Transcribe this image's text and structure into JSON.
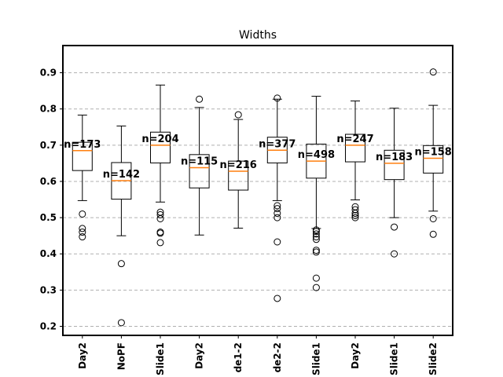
{
  "chart_data": {
    "type": "boxplot",
    "title": "Widths",
    "xlabel": "",
    "ylabel": "",
    "ylim": [
      0.175,
      0.975
    ],
    "yticks": [
      0.2,
      0.3,
      0.4,
      0.5,
      0.6,
      0.7,
      0.8,
      0.9
    ],
    "ytick_labels": [
      "0.2",
      "0.3",
      "0.4",
      "0.5",
      "0.6",
      "0.7",
      "0.8",
      "0.9"
    ],
    "grid": "y-dashed",
    "categories": [
      "Day2",
      "NoPF",
      "Slide1",
      "Day2",
      "de1-2",
      "de2-2",
      "Slide1",
      "Day2",
      "Slide1",
      "Slide2"
    ],
    "boxes": [
      {
        "label": "Day2",
        "whislo": 0.547,
        "q1": 0.63,
        "med": 0.685,
        "q3": 0.708,
        "whishi": 0.783,
        "fliers": [
          0.51,
          0.47,
          0.46,
          0.447
        ],
        "n_label": "n=173"
      },
      {
        "label": "NoPF",
        "whislo": 0.45,
        "q1": 0.551,
        "med": 0.602,
        "q3": 0.652,
        "whishi": 0.753,
        "fliers": [
          0.373,
          0.21
        ],
        "n_label": "n=142"
      },
      {
        "label": "Slide1",
        "whislo": 0.543,
        "q1": 0.651,
        "med": 0.7,
        "q3": 0.736,
        "whishi": 0.866,
        "fliers": [
          0.515,
          0.508,
          0.497,
          0.46,
          0.457,
          0.431
        ],
        "n_label": "n=204"
      },
      {
        "label": "Day2",
        "whislo": 0.452,
        "q1": 0.582,
        "med": 0.638,
        "q3": 0.674,
        "whishi": 0.804,
        "fliers": [
          0.827
        ],
        "n_label": "n=115"
      },
      {
        "label": "de1-2",
        "whislo": 0.471,
        "q1": 0.576,
        "med": 0.628,
        "q3": 0.656,
        "whishi": 0.771,
        "fliers": [
          0.784
        ],
        "n_label": "n=216"
      },
      {
        "label": "de2-2",
        "whislo": 0.547,
        "q1": 0.651,
        "med": 0.686,
        "q3": 0.722,
        "whishi": 0.827,
        "fliers": [
          0.83,
          0.533,
          0.525,
          0.512,
          0.5,
          0.433,
          0.277
        ],
        "n_label": "n=377"
      },
      {
        "label": "Slide1",
        "whislo": 0.47,
        "q1": 0.609,
        "med": 0.656,
        "q3": 0.703,
        "whishi": 0.835,
        "fliers": [
          0.466,
          0.462,
          0.455,
          0.447,
          0.44,
          0.41,
          0.405,
          0.333,
          0.307
        ],
        "n_label": "n=498"
      },
      {
        "label": "Day2",
        "whislo": 0.549,
        "q1": 0.654,
        "med": 0.7,
        "q3": 0.73,
        "whishi": 0.822,
        "fliers": [
          0.53,
          0.522,
          0.512,
          0.506,
          0.5
        ],
        "n_label": "n=247"
      },
      {
        "label": "Slide1",
        "whislo": 0.5,
        "q1": 0.605,
        "med": 0.65,
        "q3": 0.686,
        "whishi": 0.802,
        "fliers": [
          0.474,
          0.4
        ],
        "n_label": "n=183"
      },
      {
        "label": "Slide2",
        "whislo": 0.518,
        "q1": 0.623,
        "med": 0.664,
        "q3": 0.699,
        "whishi": 0.81,
        "fliers": [
          0.902,
          0.497,
          0.454
        ],
        "n_label": "n=158"
      }
    ],
    "colors": {
      "box": "#000000",
      "median": "#ff7f0e",
      "grid": "#b0b0b0"
    }
  }
}
